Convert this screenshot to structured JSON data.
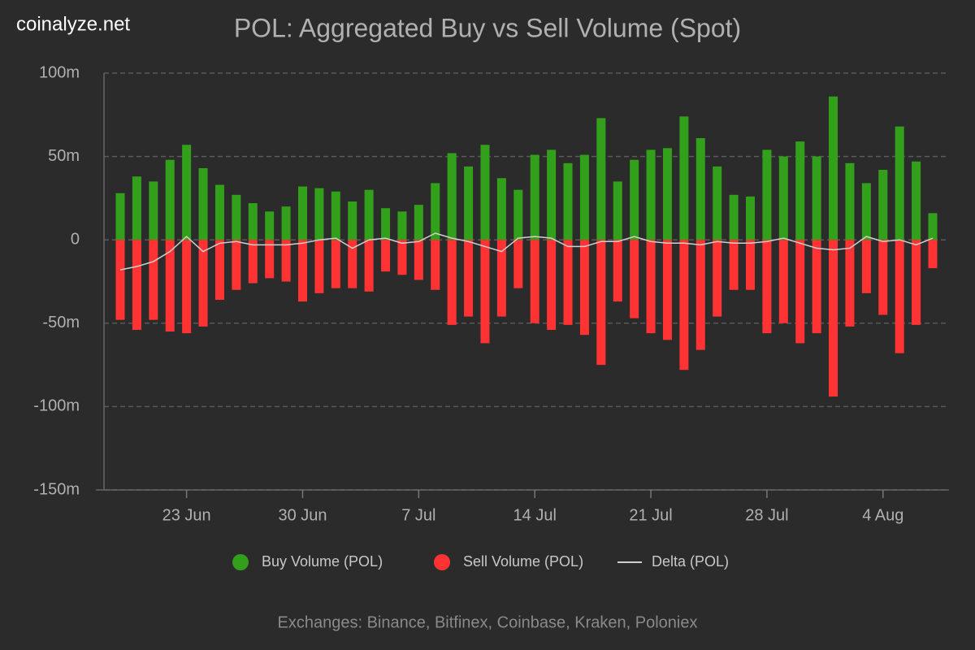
{
  "watermark": "coinalyze.net",
  "chart_data": {
    "type": "bar",
    "title": "POL: Aggregated Buy vs Sell Volume (Spot)",
    "footnote": "Exchanges: Binance, Bitfinex, Coinbase, Kraken, Poloniex",
    "categories": [
      null,
      null,
      null,
      null,
      "23 Jun",
      null,
      null,
      null,
      null,
      null,
      null,
      "30 Jun",
      null,
      null,
      null,
      null,
      null,
      null,
      "7 Jul",
      null,
      null,
      null,
      null,
      null,
      null,
      "14 Jul",
      null,
      null,
      null,
      null,
      null,
      null,
      "21 Jul",
      null,
      null,
      null,
      null,
      null,
      null,
      "28 Jul",
      null,
      null,
      null,
      null,
      null,
      null,
      "4 Aug",
      null,
      null,
      null
    ],
    "series": [
      {
        "name": "Buy Volume (POL)",
        "color": "#33a01c",
        "kind": "bar",
        "values": [
          28,
          38,
          35,
          48,
          57,
          43,
          33,
          27,
          22,
          17,
          20,
          32,
          31,
          29,
          23,
          30,
          19,
          17,
          21,
          34,
          52,
          44,
          57,
          37,
          30,
          51,
          54,
          46,
          51,
          73,
          35,
          48,
          54,
          55,
          74,
          61,
          44,
          27,
          26,
          54,
          50,
          59,
          50,
          86,
          46,
          34,
          42,
          68,
          47,
          16
        ]
      },
      {
        "name": "Sell Volume (POL)",
        "color": "#ff3333",
        "kind": "bar",
        "values": [
          -48,
          -54,
          -48,
          -55,
          -56,
          -52,
          -36,
          -30,
          -26,
          -23,
          -25,
          -37,
          -32,
          -29,
          -29,
          -31,
          -19,
          -21,
          -24,
          -30,
          -51,
          -46,
          -62,
          -46,
          -29,
          -50,
          -54,
          -51,
          -57,
          -75,
          -37,
          -47,
          -56,
          -60,
          -78,
          -66,
          -46,
          -30,
          -30,
          -56,
          -50,
          -62,
          -56,
          -94,
          -52,
          -32,
          -45,
          -68,
          -51,
          -17
        ]
      },
      {
        "name": "Delta (POL)",
        "color": "#d0d0d0",
        "kind": "line",
        "values": [
          -18,
          -16,
          -13,
          -7,
          2,
          -7,
          -2,
          -1,
          -3,
          -3,
          -3,
          -2,
          0,
          1,
          -5,
          0,
          1,
          -2,
          -1,
          4,
          1,
          -1,
          -4,
          -7,
          1,
          2,
          1,
          -4,
          -4,
          -1,
          -1,
          2,
          -1,
          -2,
          -2,
          -3,
          -1,
          -2,
          -2,
          -1,
          1,
          -2,
          -5,
          -6,
          -5,
          2,
          -1,
          0,
          -3,
          1
        ]
      }
    ],
    "ylim": [
      -150,
      100
    ],
    "yticks": [
      {
        "value": -150,
        "label": "-150m"
      },
      {
        "value": -100,
        "label": "-100m"
      },
      {
        "value": -50,
        "label": "-50m"
      },
      0,
      {
        "value": 50,
        "label": "50m"
      },
      {
        "value": 100,
        "label": "100m"
      }
    ],
    "grid": true,
    "legend": "bottom"
  }
}
